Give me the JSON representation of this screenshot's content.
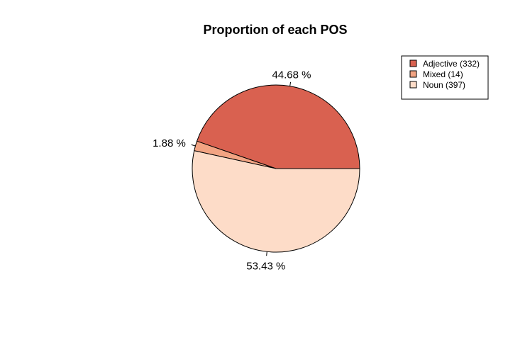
{
  "chart_data": {
    "type": "pie",
    "title": "Proportion of each POS",
    "slices": [
      {
        "name": "Adjective",
        "count": 332,
        "percent": 44.68,
        "percent_label": "44.68 %",
        "legend_label": "Adjective (332)",
        "color": "#D96150"
      },
      {
        "name": "Mixed",
        "count": 14,
        "percent": 1.88,
        "percent_label": "1.88 %",
        "legend_label": "Mixed (14)",
        "color": "#F2A483"
      },
      {
        "name": "Noun",
        "count": 397,
        "percent": 53.43,
        "percent_label": "53.43 %",
        "legend_label": "Noun (397)",
        "color": "#FDDCC8"
      }
    ],
    "start_angle_deg": 0,
    "direction": "counterclockwise",
    "legend_position": "top-right"
  }
}
